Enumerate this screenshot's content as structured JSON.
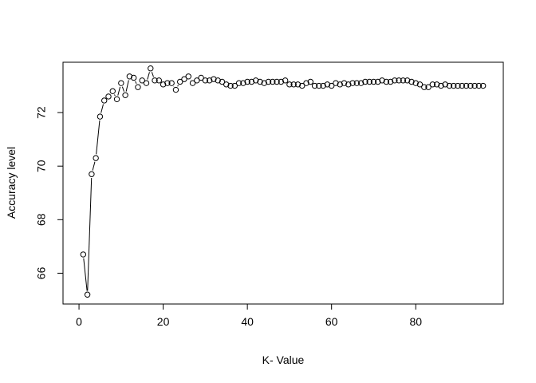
{
  "chart_data": {
    "type": "scatter",
    "plot_type": "b",
    "title": "",
    "xlabel": "K- Value",
    "ylabel": "Accuracy level",
    "xlim": [
      -3.8,
      100.8
    ],
    "ylim": [
      64.85,
      73.88
    ],
    "xticks": [
      0,
      20,
      40,
      60,
      80
    ],
    "yticks": [
      66,
      68,
      70,
      72
    ],
    "x_tick_labels": [
      "0",
      "20",
      "40",
      "60",
      "80"
    ],
    "y_tick_labels": [
      "66",
      "68",
      "70",
      "72"
    ],
    "grid": false,
    "legend": "none",
    "series": [
      {
        "x": [
          1,
          2,
          3,
          4,
          5,
          6,
          7,
          8,
          9,
          10,
          11,
          12,
          13,
          14,
          15,
          16,
          17,
          18,
          19,
          20,
          21,
          22,
          23,
          24,
          25,
          26,
          27,
          28,
          29,
          30,
          31,
          32,
          33,
          34,
          35,
          36,
          37,
          38,
          39,
          40,
          41,
          42,
          43,
          44,
          45,
          46,
          47,
          48,
          49,
          50,
          51,
          52,
          53,
          54,
          55,
          56,
          57,
          58,
          59,
          60,
          61,
          62,
          63,
          64,
          65,
          66,
          67,
          68,
          69,
          70,
          71,
          72,
          73,
          74,
          75,
          76,
          77,
          78,
          79,
          80,
          81,
          82,
          83,
          84,
          85,
          86,
          87,
          88,
          89,
          90,
          91,
          92,
          93,
          94,
          95,
          96
        ],
        "values": [
          66.7,
          65.2,
          69.7,
          70.3,
          71.85,
          72.45,
          72.6,
          72.8,
          72.5,
          73.1,
          72.65,
          73.35,
          73.3,
          72.95,
          73.2,
          73.1,
          73.65,
          73.2,
          73.2,
          73.05,
          73.1,
          73.1,
          72.85,
          73.15,
          73.25,
          73.35,
          73.1,
          73.2,
          73.3,
          73.2,
          73.2,
          73.25,
          73.2,
          73.15,
          73.05,
          73.0,
          73.0,
          73.1,
          73.1,
          73.15,
          73.15,
          73.2,
          73.15,
          73.1,
          73.15,
          73.15,
          73.15,
          73.15,
          73.2,
          73.05,
          73.05,
          73.05,
          73.0,
          73.1,
          73.15,
          73.0,
          73.0,
          73.0,
          73.05,
          73.0,
          73.1,
          73.05,
          73.1,
          73.05,
          73.1,
          73.1,
          73.1,
          73.15,
          73.15,
          73.15,
          73.15,
          73.2,
          73.15,
          73.15,
          73.2,
          73.2,
          73.2,
          73.2,
          73.15,
          73.1,
          73.05,
          72.95,
          72.95,
          73.05,
          73.05,
          73.0,
          73.05,
          73.0,
          73.0,
          73.0,
          73.0,
          73.0,
          73.0,
          73.0,
          73.0,
          73.0
        ]
      }
    ]
  }
}
